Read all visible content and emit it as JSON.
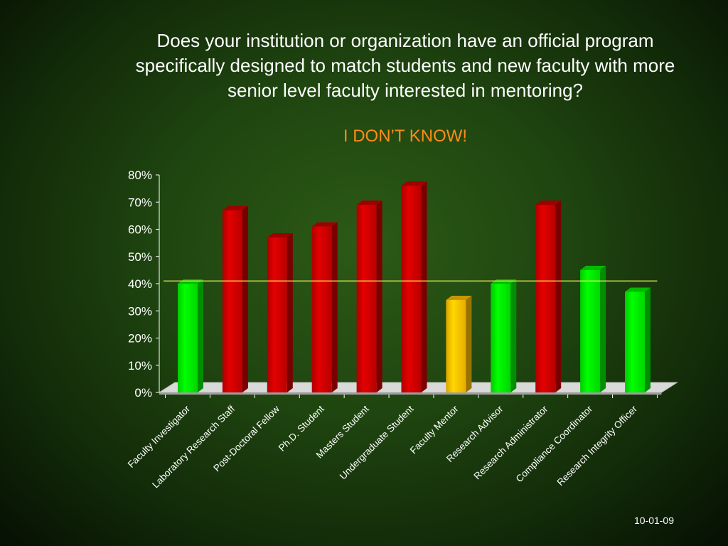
{
  "slide": {
    "title": "Does your institution or organization have an official program specifically designed to match students and new faculty with more senior level faculty interested in mentoring?",
    "subtitle": "I DON’T KNOW!",
    "date": "10-01-09"
  },
  "colors": {
    "green": "#00ee00",
    "red": "#cc0000",
    "yellow": "#ffc000",
    "reference_line": "#ffff66"
  },
  "chart_data": {
    "type": "bar",
    "categories": [
      "Faculty Investigator",
      "Laboratory Research Staff",
      "Post-Doctoral Fellow",
      "Ph.D. Student",
      "Masters Student",
      "Undergraduate Student",
      "Faculty Mentor",
      "Research Advisor",
      "Research Administrator",
      "Compliance Coordinator",
      "Research Integrity Officer"
    ],
    "values": [
      40,
      67,
      57,
      61,
      69,
      76,
      34,
      40,
      69,
      45,
      37
    ],
    "bar_colors": [
      "green",
      "red",
      "red",
      "red",
      "red",
      "red",
      "yellow",
      "green",
      "red",
      "green",
      "green"
    ],
    "reference_line": 41,
    "yticks": [
      "0%",
      "10%",
      "20%",
      "30%",
      "40%",
      "50%",
      "60%",
      "70%",
      "80%"
    ],
    "ylim": [
      0,
      80
    ],
    "unit": "%",
    "grid": false,
    "legend": "none"
  }
}
